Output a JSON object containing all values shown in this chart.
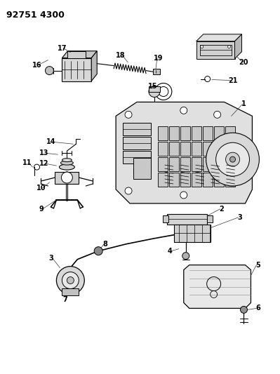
{
  "title": "92751 4300",
  "bg_color": "#ffffff",
  "fig_width": 3.99,
  "fig_height": 5.33,
  "dpi": 100
}
